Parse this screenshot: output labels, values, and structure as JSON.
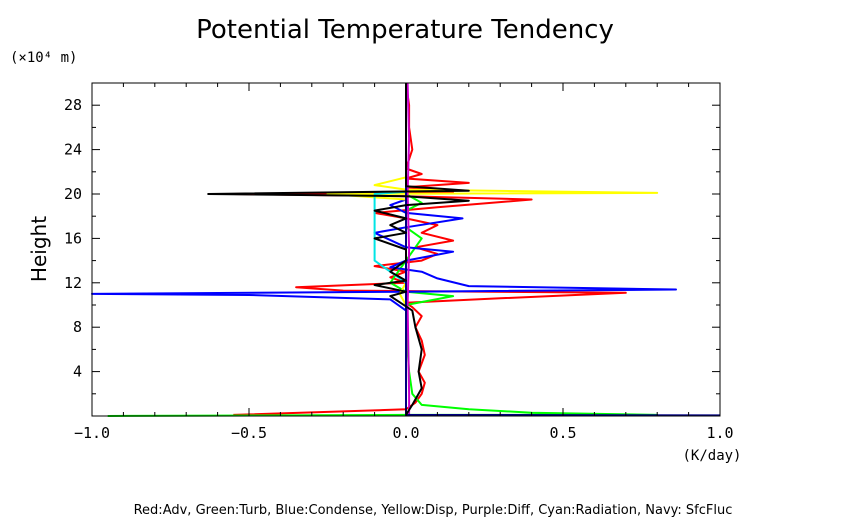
{
  "chart_data": {
    "type": "line",
    "title": "Potential Temperature Tendency",
    "xlabel": "(K/day)",
    "ylabel": "Height",
    "y_unit": "(×10⁴ m)",
    "xlim": [
      -1.0,
      1.0
    ],
    "ylim": [
      0,
      30
    ],
    "x_ticks": [
      -1.0,
      -0.5,
      0.0,
      0.5,
      1.0
    ],
    "x_tick_labels": [
      "−1.0",
      "−0.5",
      "0.0",
      "0.5",
      "1.0"
    ],
    "y_ticks": [
      4,
      8,
      12,
      16,
      20,
      24,
      28
    ],
    "y_tick_labels": [
      "4",
      "8",
      "12",
      "16",
      "20",
      "24",
      "28"
    ],
    "grid": false,
    "legend": "Red:Adv, Green:Turb, Blue:Condense, Yellow:Disp, Purple:Diff, Cyan:Radiation, Navy: SfcFluc",
    "series": [
      {
        "name": "Adv",
        "color": "#ff0000",
        "points": [
          [
            -0.55,
            0.1
          ],
          [
            0.0,
            0.6
          ],
          [
            0.03,
            1.2
          ],
          [
            0.05,
            2.0
          ],
          [
            0.06,
            3.0
          ],
          [
            0.04,
            4.0
          ],
          [
            0.06,
            5.5
          ],
          [
            0.05,
            6.8
          ],
          [
            0.03,
            8.0
          ],
          [
            0.05,
            9.0
          ],
          [
            0.02,
            9.8
          ],
          [
            0.0,
            10.2
          ],
          [
            0.3,
            10.6
          ],
          [
            0.7,
            11.1
          ],
          [
            -0.2,
            11.3
          ],
          [
            -0.35,
            11.6
          ],
          [
            0.0,
            12.0
          ],
          [
            -0.05,
            12.5
          ],
          [
            0.0,
            13.0
          ],
          [
            -0.1,
            13.5
          ],
          [
            0.05,
            14.0
          ],
          [
            0.1,
            14.6
          ],
          [
            0.03,
            15.2
          ],
          [
            0.15,
            15.8
          ],
          [
            0.05,
            16.5
          ],
          [
            0.1,
            17.2
          ],
          [
            0.0,
            17.8
          ],
          [
            -0.1,
            18.3
          ],
          [
            0.1,
            18.8
          ],
          [
            0.4,
            19.5
          ],
          [
            0.0,
            19.8
          ],
          [
            -0.55,
            20.0
          ],
          [
            0.15,
            20.2
          ],
          [
            0.0,
            20.6
          ],
          [
            0.2,
            21.0
          ],
          [
            0.0,
            21.4
          ],
          [
            0.05,
            21.8
          ],
          [
            0.0,
            22.3
          ],
          [
            0.02,
            24.0
          ],
          [
            0.01,
            26.0
          ],
          [
            0.01,
            28.0
          ],
          [
            0.0,
            30.0
          ]
        ]
      },
      {
        "name": "Turb",
        "color": "#00ff00",
        "points": [
          [
            -0.95,
            0.0
          ],
          [
            -0.4,
            0.05
          ],
          [
            0.0,
            0.1
          ],
          [
            0.8,
            0.1
          ],
          [
            0.4,
            0.3
          ],
          [
            0.2,
            0.6
          ],
          [
            0.05,
            1.0
          ],
          [
            0.02,
            2.0
          ],
          [
            0.01,
            4.0
          ],
          [
            0.0,
            8.0
          ],
          [
            0.0,
            10.0
          ],
          [
            0.15,
            10.8
          ],
          [
            0.0,
            11.2
          ],
          [
            -0.05,
            12.0
          ],
          [
            0.0,
            14.0
          ],
          [
            0.05,
            16.0
          ],
          [
            0.0,
            17.0
          ],
          [
            0.0,
            18.5
          ],
          [
            0.05,
            19.2
          ],
          [
            0.0,
            20.0
          ],
          [
            0.0,
            30.0
          ]
        ]
      },
      {
        "name": "Condense",
        "color": "#0000ff",
        "points": [
          [
            0.0,
            0.1
          ],
          [
            0.0,
            1.0
          ],
          [
            0.0,
            4.0
          ],
          [
            0.0,
            9.5
          ],
          [
            -0.05,
            10.5
          ],
          [
            -0.5,
            10.9
          ],
          [
            -1.0,
            11.0
          ],
          [
            0.0,
            11.2
          ],
          [
            0.86,
            11.4
          ],
          [
            0.2,
            11.7
          ],
          [
            0.1,
            12.4
          ],
          [
            0.05,
            13.0
          ],
          [
            -0.05,
            13.4
          ],
          [
            0.0,
            14.0
          ],
          [
            0.15,
            14.8
          ],
          [
            0.0,
            15.2
          ],
          [
            -0.1,
            16.5
          ],
          [
            0.0,
            17.0
          ],
          [
            0.18,
            17.8
          ],
          [
            0.0,
            18.3
          ],
          [
            -0.05,
            19.0
          ],
          [
            0.0,
            19.5
          ],
          [
            0.0,
            30.0
          ]
        ]
      },
      {
        "name": "Disp",
        "color": "#ffff00",
        "points": [
          [
            0.0,
            0.1
          ],
          [
            0.0,
            10.0
          ],
          [
            -0.02,
            11.0
          ],
          [
            0.0,
            12.0
          ],
          [
            0.0,
            19.5
          ],
          [
            -0.25,
            20.0
          ],
          [
            0.8,
            20.1
          ],
          [
            0.0,
            20.4
          ],
          [
            -0.1,
            20.8
          ],
          [
            0.0,
            21.5
          ],
          [
            0.0,
            30.0
          ]
        ]
      },
      {
        "name": "Diff",
        "color": "#cc00cc",
        "points": [
          [
            0.01,
            0.1
          ],
          [
            0.01,
            2.0
          ],
          [
            0.005,
            10.0
          ],
          [
            0.01,
            15.0
          ],
          [
            0.005,
            20.0
          ],
          [
            0.01,
            25.0
          ],
          [
            0.005,
            30.0
          ]
        ]
      },
      {
        "name": "Radiation",
        "color": "#00e5e5",
        "points": [
          [
            0.0,
            0.1
          ],
          [
            0.0,
            12.0
          ],
          [
            -0.05,
            13.0
          ],
          [
            -0.1,
            14.0
          ],
          [
            -0.1,
            20.0
          ],
          [
            0.0,
            20.2
          ],
          [
            0.0,
            30.0
          ]
        ]
      },
      {
        "name": "SfcFluc",
        "color": "#000080",
        "points": [
          [
            1.0,
            0.05
          ],
          [
            0.5,
            0.08
          ],
          [
            0.0,
            0.1
          ],
          [
            0.0,
            30.0
          ]
        ]
      },
      {
        "name": "",
        "color": "#000000",
        "points": [
          [
            0.0,
            0.1
          ],
          [
            0.02,
            1.0
          ],
          [
            0.05,
            2.5
          ],
          [
            0.04,
            4.0
          ],
          [
            0.05,
            6.0
          ],
          [
            0.03,
            8.0
          ],
          [
            0.02,
            9.5
          ],
          [
            -0.05,
            10.8
          ],
          [
            0.0,
            11.2
          ],
          [
            -0.1,
            11.8
          ],
          [
            0.0,
            12.2
          ],
          [
            -0.05,
            13.0
          ],
          [
            0.0,
            14.0
          ],
          [
            0.0,
            15.0
          ],
          [
            -0.1,
            16.0
          ],
          [
            0.0,
            16.5
          ],
          [
            -0.05,
            17.2
          ],
          [
            0.0,
            17.8
          ],
          [
            -0.1,
            18.5
          ],
          [
            0.0,
            19.0
          ],
          [
            0.2,
            19.4
          ],
          [
            0.0,
            19.8
          ],
          [
            -0.63,
            20.0
          ],
          [
            0.2,
            20.3
          ],
          [
            0.0,
            20.7
          ],
          [
            0.0,
            30.0
          ]
        ]
      }
    ]
  }
}
